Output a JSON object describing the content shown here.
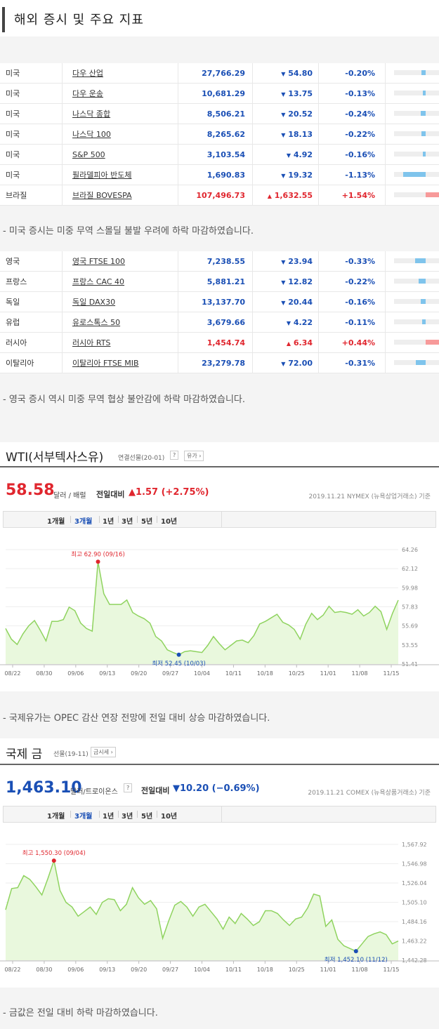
{
  "header": {
    "title": "해외 증시 및 주요 지표"
  },
  "us_table": [
    {
      "country": "미국",
      "name": "다우 산업",
      "value": "27,766.29",
      "arrow": "▼",
      "change": "54.80",
      "pct": "-0.20%",
      "pct_num": -0.2
    },
    {
      "country": "미국",
      "name": "다우 운송",
      "value": "10,681.29",
      "arrow": "▼",
      "change": "13.75",
      "pct": "-0.13%",
      "pct_num": -0.13
    },
    {
      "country": "미국",
      "name": "나스닥 종합",
      "value": "8,506.21",
      "arrow": "▼",
      "change": "20.52",
      "pct": "-0.24%",
      "pct_num": -0.24
    },
    {
      "country": "미국",
      "name": "나스닥 100",
      "value": "8,265.62",
      "arrow": "▼",
      "change": "18.13",
      "pct": "-0.22%",
      "pct_num": -0.22
    },
    {
      "country": "미국",
      "name": "S&P 500",
      "value": "3,103.54",
      "arrow": "▼",
      "change": "4.92",
      "pct": "-0.16%",
      "pct_num": -0.16
    },
    {
      "country": "미국",
      "name": "필라델피아 반도체",
      "value": "1,690.83",
      "arrow": "▼",
      "change": "19.32",
      "pct": "-1.13%",
      "pct_num": -1.13
    },
    {
      "country": "브라질",
      "name": "브라질 BOVESPA",
      "value": "107,496.73",
      "arrow": "▲",
      "change": "1,632.55",
      "pct": "+1.54%",
      "pct_num": 1.54
    }
  ],
  "note1": "-  미국 증시는 미중 무역 스몰딜 불발 우려에 하락 마감하였습니다.",
  "eu_table": [
    {
      "country": "영국",
      "name": "영국 FTSE 100",
      "value": "7,238.55",
      "arrow": "▼",
      "change": "23.94",
      "pct": "-0.33%",
      "pct_num": -0.33
    },
    {
      "country": "프랑스",
      "name": "프랑스 CAC 40",
      "value": "5,881.21",
      "arrow": "▼",
      "change": "12.82",
      "pct": "-0.22%",
      "pct_num": -0.22
    },
    {
      "country": "독일",
      "name": "독일 DAX30",
      "value": "13,137.70",
      "arrow": "▼",
      "change": "20.44",
      "pct": "-0.16%",
      "pct_num": -0.16
    },
    {
      "country": "유럽",
      "name": "유로스톡스 50",
      "value": "3,679.66",
      "arrow": "▼",
      "change": "4.22",
      "pct": "-0.11%",
      "pct_num": -0.11
    },
    {
      "country": "러시아",
      "name": "러시아 RTS",
      "value": "1,454.74",
      "arrow": "▲",
      "change": "6.34",
      "pct": "+0.44%",
      "pct_num": 0.44
    },
    {
      "country": "이탈리아",
      "name": "이탈리아 FTSE MIB",
      "value": "23,279.78",
      "arrow": "▼",
      "change": "72.00",
      "pct": "-0.31%",
      "pct_num": -0.31
    }
  ],
  "note2": "- 영국 증시 역시 미중 무역 협상 불안감에 하락 마감하였습니다.",
  "wti": {
    "title": "WTI(서부텍사스유)",
    "sub": "연결선물(20-01)",
    "help": "?",
    "btn": "유가 ›",
    "price": "58.58",
    "unit": "달러 / 배럴",
    "cmp_label": "전일대비",
    "cmp": "▲1.57 (+2.75%)",
    "meta": "2019.11.21  NYMEX (뉴욕상업거래소) 기준",
    "tabs": [
      "1개월",
      "3개월",
      "1년",
      "3년",
      "5년",
      "10년"
    ],
    "active_tab": "3개월"
  },
  "note3": "- 국제유가는 OPEC 감산 연장 전망에 전일 대비 상승 마감하였습니다.",
  "gold": {
    "title": "국제 금",
    "sub": "선물(19-11)",
    "btn": "금시세 ›",
    "price": "1,463.10",
    "unit": "달러/트로이온스",
    "help": "?",
    "cmp_label": "전일대비",
    "cmp": "▼10.20 (−0.69%)",
    "meta": "2019.11.21  COMEX (뉴욕상품거래소) 기준",
    "tabs": [
      "1개월",
      "3개월",
      "1년",
      "3년",
      "5년",
      "10년"
    ],
    "active_tab": "3개월"
  },
  "note4": "- 금값은 전일 대비 하락 마감하였습니다.",
  "colors": {
    "up": "#e0262e",
    "down": "#1a4fb5",
    "chart_line": "#8fd35f",
    "chart_fill": "#e9f8dd"
  },
  "chart_data": [
    {
      "type": "area",
      "title": "WTI(서부텍사스유)",
      "x_ticks": [
        "08/22",
        "08/30",
        "09/06",
        "09/13",
        "09/20",
        "09/27",
        "10/04",
        "10/11",
        "10/18",
        "10/25",
        "11/01",
        "11/08",
        "11/15"
      ],
      "y_ticks": [
        "64.26",
        "62.12",
        "59.98",
        "57.83",
        "55.69",
        "53.55",
        "51.41"
      ],
      "ylim": [
        51.41,
        64.26
      ],
      "values": [
        55.4,
        54.2,
        53.6,
        54.8,
        55.7,
        56.3,
        55.2,
        54.0,
        56.2,
        56.2,
        56.4,
        57.8,
        57.4,
        56.0,
        55.4,
        55.1,
        62.9,
        59.3,
        58.1,
        58.1,
        58.1,
        58.6,
        57.2,
        56.8,
        56.5,
        56.0,
        54.5,
        54.0,
        53.0,
        52.7,
        52.45,
        52.8,
        52.9,
        52.8,
        52.7,
        53.5,
        54.5,
        53.7,
        53.0,
        53.5,
        54.0,
        54.1,
        53.8,
        54.6,
        55.9,
        56.2,
        56.6,
        57.0,
        56.1,
        55.8,
        55.3,
        54.2,
        55.9,
        57.1,
        56.4,
        56.9,
        57.9,
        57.2,
        57.3,
        57.2,
        57.0,
        57.5,
        56.8,
        57.2,
        57.9,
        57.3,
        55.3,
        57.1,
        58.58
      ],
      "annotations": [
        {
          "label": "최고 62.90 (09/16)",
          "index": 16,
          "value": 62.9,
          "kind": "max"
        },
        {
          "label": "최저 52.45 (10/03)",
          "index": 30,
          "value": 52.45,
          "kind": "min"
        }
      ]
    },
    {
      "type": "area",
      "title": "국제 금",
      "x_ticks": [
        "08/22",
        "08/30",
        "09/06",
        "09/13",
        "09/20",
        "09/27",
        "10/04",
        "10/11",
        "10/18",
        "10/25",
        "11/01",
        "11/08",
        "11/15"
      ],
      "y_ticks": [
        "1,567.92",
        "1,546.98",
        "1,526.04",
        "1,505.10",
        "1,484.16",
        "1,463.22",
        "1,442.28"
      ],
      "ylim": [
        1442.28,
        1567.92
      ],
      "values": [
        1497,
        1520,
        1521,
        1534,
        1530,
        1522,
        1513,
        1531,
        1550.3,
        1518,
        1505,
        1500,
        1490,
        1495,
        1500,
        1492,
        1505,
        1509,
        1508,
        1496,
        1503,
        1521,
        1510,
        1503,
        1507,
        1498,
        1466,
        1485,
        1502,
        1506,
        1500,
        1490,
        1500,
        1503,
        1495,
        1487,
        1476,
        1489,
        1482,
        1493,
        1487,
        1480,
        1484,
        1496,
        1496,
        1493,
        1486,
        1480,
        1487,
        1489,
        1499,
        1514,
        1512,
        1479,
        1486,
        1465,
        1458,
        1455,
        1452.1,
        1460,
        1468,
        1471,
        1473,
        1470,
        1460,
        1463.1
      ],
      "annotations": [
        {
          "label": "최고 1,550.30 (09/04)",
          "index": 8,
          "value": 1550.3,
          "kind": "max"
        },
        {
          "label": "최저 1,452.10 (11/12)",
          "index": 58,
          "value": 1452.1,
          "kind": "min"
        }
      ]
    }
  ]
}
